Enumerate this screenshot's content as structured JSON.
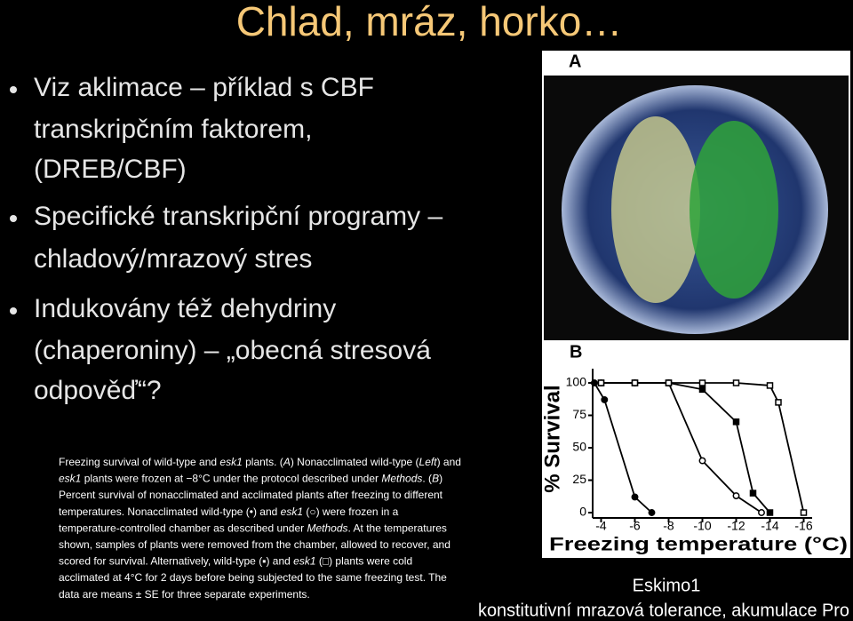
{
  "title": "Chlad, mráz, horko…",
  "bullets": [
    {
      "lines": [
        "Viz aklimace – příklad s CBF",
        "transkripčním faktorem,",
        "(DREB/CBF)"
      ]
    },
    {
      "lines": [
        "Specifické transkripční programy –",
        "chladový/mrazový stres"
      ]
    },
    {
      "lines": [
        "Indukovány též dehydriny",
        "(chaperoniny) – „obecná stresová",
        "odpověď“?"
      ]
    }
  ],
  "caption": {
    "lines": [
      [
        "Freezing survival of wild-type and ",
        {
          "text": "esk1",
          "italic": true
        },
        " plants. (",
        {
          "text": "A",
          "italic": true
        },
        ") Nonacclimated wild-type (",
        {
          "text": "Left",
          "italic": true
        },
        ") and"
      ],
      [
        {
          "text": "esk1",
          "italic": true
        },
        " plants were frozen at −8°C under the protocol described under ",
        {
          "text": "Methods",
          "italic": true
        },
        ". (",
        {
          "text": "B",
          "italic": true
        },
        ")"
      ],
      [
        "Percent survival of nonacclimated and acclimated plants after freezing to different"
      ],
      [
        "temperatures. Nonacclimated wild-type (•) and ",
        {
          "text": "esk1",
          "italic": true
        },
        " (○) were frozen in a"
      ],
      [
        "temperature-controlled chamber as described under ",
        {
          "text": "Methods",
          "italic": true
        },
        ". At the temperatures"
      ],
      [
        "shown, samples of plants were removed from the chamber, allowed to recover, and"
      ],
      [
        "scored for survival. Alternatively, wild-type (▪) and ",
        {
          "text": "esk1",
          "italic": true
        },
        " (□) plants were cold"
      ],
      [
        "acclimated at 4°C for 2 days before being subjected to the same freezing test. The"
      ],
      [
        "data are means ± SE for three separate experiments."
      ]
    ]
  },
  "figure": {
    "panel_a_label": "A",
    "panel_b_label": "B",
    "chart_data": {
      "type": "line",
      "ylabel": "% Survival",
      "xlabel": "Freezing temperature (°C)",
      "xlim": [
        -3.5,
        -16.5
      ],
      "ylim": [
        0,
        100
      ],
      "xticks": [
        -4,
        -6,
        -8,
        -10,
        -12,
        -14,
        -16
      ],
      "yticks": [
        0,
        25,
        50,
        75,
        100
      ],
      "series": [
        {
          "marker": "filled-circle",
          "color": "#000000",
          "x": [
            -3.6,
            -4.2,
            -6,
            -7
          ],
          "values": [
            100,
            87,
            12,
            0
          ]
        },
        {
          "marker": "open-circle",
          "color": "#000000",
          "x": [
            -4,
            -6,
            -8,
            -10,
            -12,
            -13.5
          ],
          "values": [
            100,
            100,
            100,
            40,
            13,
            0
          ]
        },
        {
          "marker": "filled-square",
          "color": "#000000",
          "x": [
            -4,
            -6,
            -8,
            -10,
            -12,
            -13,
            -14
          ],
          "values": [
            100,
            100,
            100,
            95,
            70,
            15,
            0
          ]
        },
        {
          "marker": "open-square",
          "color": "#000000",
          "x": [
            -4,
            -6,
            -8,
            -10,
            -12,
            -14,
            -14.5,
            -16
          ],
          "values": [
            100,
            100,
            100,
            100,
            100,
            98,
            85,
            0
          ]
        }
      ]
    }
  },
  "footer": {
    "line1": "Eskimo1",
    "line2": "konstitutivní mrazová tolerance, akumulace Pro"
  }
}
